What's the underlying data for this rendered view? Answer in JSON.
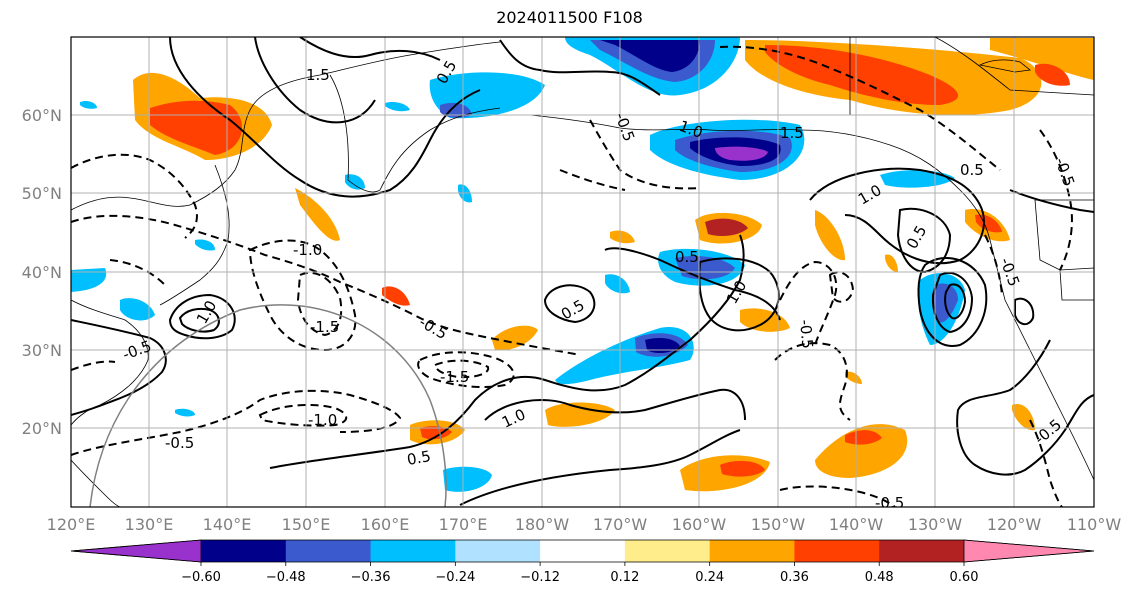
{
  "title": "2024011500 F108",
  "map": {
    "lon_labels": [
      "120°E",
      "130°E",
      "140°E",
      "150°E",
      "160°E",
      "170°E",
      "180°W",
      "170°W",
      "160°W",
      "150°W",
      "140°W",
      "130°W",
      "120°W",
      "110°W"
    ],
    "lat_labels": [
      "60°N",
      "50°N",
      "40°N",
      "30°N",
      "20°N"
    ],
    "contour_labels": [
      "1.5",
      "-0.5",
      "0.5",
      "1.0",
      "-1.0",
      "-1.5",
      "-0.5",
      "0.5",
      "1.0",
      "-1.0",
      "-0.5",
      "0.5",
      "-1.5",
      "-0.5",
      "1.0",
      "-0.5",
      "0.5",
      "1.0",
      "-0.5",
      "-0.5",
      "-0.5",
      "1.5",
      "1.0",
      "0.5",
      "-0.5",
      "0.5"
    ]
  },
  "colorbar": {
    "ticks": [
      "−0.60",
      "−0.48",
      "−0.36",
      "−0.24",
      "−0.12",
      "0.12",
      "0.24",
      "0.36",
      "0.48",
      "0.60"
    ],
    "colors": [
      "#9932cc",
      "#00008b",
      "#3a5acd",
      "#00bfff",
      "#b0e2ff",
      "#ffffff",
      "#ffec8b",
      "#ffa500",
      "#ff4000",
      "#b22222",
      "#ff88b0"
    ]
  }
}
